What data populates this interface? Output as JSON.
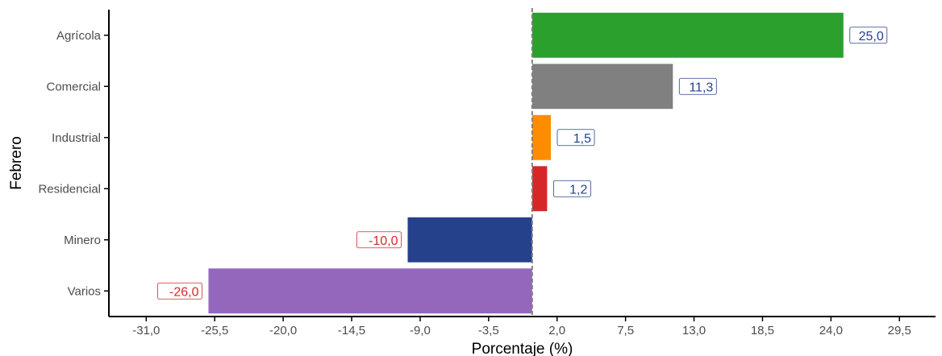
{
  "chart_data": {
    "type": "bar",
    "orientation": "horizontal",
    "xlabel": "Porcentaje (%)",
    "ylabel": "Febrero",
    "xlim": [
      -34.0,
      32.4
    ],
    "xticks": [
      -31.0,
      -25.5,
      -20.0,
      -14.5,
      -9.0,
      -3.5,
      2.0,
      7.5,
      13.0,
      18.5,
      24.0,
      29.5
    ],
    "xtick_labels": [
      "-31,0",
      "-25,5",
      "-20,0",
      "-14,5",
      "-9,0",
      "-3,5",
      "2,0",
      "7,5",
      "13,0",
      "18,5",
      "24,0",
      "29,5"
    ],
    "reference_line": 0,
    "grid": false,
    "categories": [
      "Agrícola",
      "Comercial",
      "Industrial",
      "Residencial",
      "Minero",
      "Varios"
    ],
    "values": [
      25.0,
      11.3,
      1.5,
      1.2,
      -10.0,
      -26.0
    ],
    "value_labels": [
      "25,0",
      "11,3",
      "1,5",
      "1,2",
      "-10,0",
      "-26,0"
    ],
    "colors": [
      "#2ca02c",
      "#808080",
      "#ff8c00",
      "#d62728",
      "#26418c",
      "#9467bd"
    ],
    "label_colors": {
      "positive": "#26418c",
      "negative": "#d62728"
    }
  }
}
